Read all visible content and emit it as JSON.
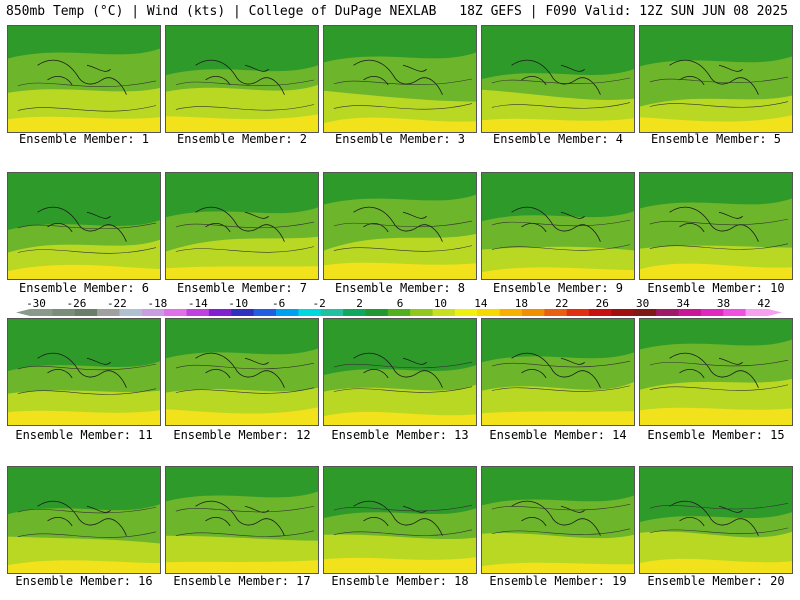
{
  "header": {
    "left_title": "850mb Temp (°C) | Wind (kts) | College of DuPage NEXLAB",
    "right_title": "18Z GEFS | F090 Valid: 12Z SUN JUN 08 2025"
  },
  "panels": [
    {
      "label": "Ensemble Member: 1"
    },
    {
      "label": "Ensemble Member: 2"
    },
    {
      "label": "Ensemble Member: 3"
    },
    {
      "label": "Ensemble Member: 4"
    },
    {
      "label": "Ensemble Member: 5"
    },
    {
      "label": "Ensemble Member: 6"
    },
    {
      "label": "Ensemble Member: 7"
    },
    {
      "label": "Ensemble Member: 8"
    },
    {
      "label": "Ensemble Member: 9"
    },
    {
      "label": "Ensemble Member: 10"
    },
    {
      "label": "Ensemble Member: 11"
    },
    {
      "label": "Ensemble Member: 12"
    },
    {
      "label": "Ensemble Member: 13"
    },
    {
      "label": "Ensemble Member: 14"
    },
    {
      "label": "Ensemble Member: 15"
    },
    {
      "label": "Ensemble Member: 16"
    },
    {
      "label": "Ensemble Member: 17"
    },
    {
      "label": "Ensemble Member: 18"
    },
    {
      "label": "Ensemble Member: 19"
    },
    {
      "label": "Ensemble Member: 20"
    }
  ],
  "colorbar": {
    "ticks": [
      "-30",
      "-26",
      "-22",
      "-18",
      "-14",
      "-10",
      "-6",
      "-2",
      "2",
      "6",
      "10",
      "14",
      "18",
      "22",
      "26",
      "30",
      "34",
      "38",
      "42"
    ],
    "colors": [
      "#8a9a8a",
      "#7a8c7a",
      "#6a7e6a",
      "#a0a0a0",
      "#b0c0d0",
      "#c89ee0",
      "#e070e8",
      "#c040e0",
      "#8020d0",
      "#3030c0",
      "#2060e0",
      "#00a0f0",
      "#00d8e0",
      "#20c0a0",
      "#10a860",
      "#209830",
      "#50b020",
      "#90c820",
      "#c8e020",
      "#f0f010",
      "#f8d800",
      "#f8b000",
      "#f09000",
      "#e86010",
      "#e03010",
      "#c81010",
      "#a01010",
      "#801818",
      "#a01868",
      "#c81898",
      "#e028c0",
      "#f050e0",
      "#f8a0f0"
    ]
  }
}
